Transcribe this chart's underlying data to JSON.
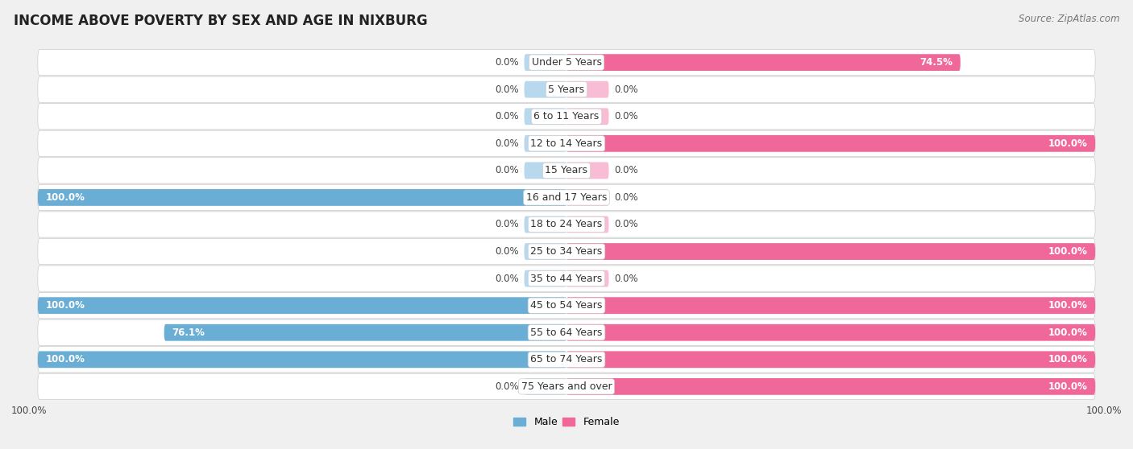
{
  "title": "INCOME ABOVE POVERTY BY SEX AND AGE IN NIXBURG",
  "source": "Source: ZipAtlas.com",
  "categories": [
    "Under 5 Years",
    "5 Years",
    "6 to 11 Years",
    "12 to 14 Years",
    "15 Years",
    "16 and 17 Years",
    "18 to 24 Years",
    "25 to 34 Years",
    "35 to 44 Years",
    "45 to 54 Years",
    "55 to 64 Years",
    "65 to 74 Years",
    "75 Years and over"
  ],
  "male_values": [
    0.0,
    0.0,
    0.0,
    0.0,
    0.0,
    100.0,
    0.0,
    0.0,
    0.0,
    100.0,
    76.1,
    100.0,
    0.0
  ],
  "female_values": [
    74.5,
    0.0,
    0.0,
    100.0,
    0.0,
    0.0,
    0.0,
    100.0,
    0.0,
    100.0,
    100.0,
    100.0,
    100.0
  ],
  "male_color": "#6aaed6",
  "male_stub_color": "#b8d8ee",
  "female_color": "#f06899",
  "female_stub_color": "#f9bcd5",
  "male_label": "Male",
  "female_label": "Female",
  "bar_height": 0.62,
  "stub_value": 8.0,
  "background_color": "#f0f0f0",
  "row_bg_white": "#ffffff",
  "row_bg_gray": "#e8e8e8",
  "xlim": 100,
  "title_fontsize": 12,
  "label_fontsize": 9,
  "value_fontsize": 8.5,
  "legend_fontsize": 9,
  "source_fontsize": 8.5
}
